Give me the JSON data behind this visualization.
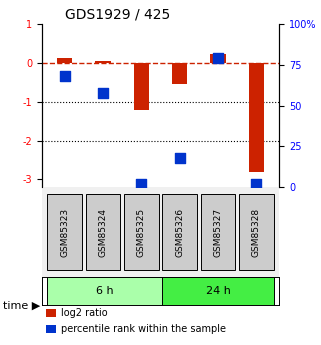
{
  "title": "GDS1929 / 425",
  "samples": [
    "GSM85323",
    "GSM85324",
    "GSM85325",
    "GSM85326",
    "GSM85327",
    "GSM85328"
  ],
  "log2_ratio": [
    0.12,
    0.05,
    -1.2,
    -0.55,
    0.22,
    -2.8
  ],
  "percentile_rank": [
    68,
    58,
    2,
    18,
    79,
    2
  ],
  "groups": [
    {
      "label": "6 h",
      "indices": [
        0,
        1,
        2
      ],
      "color": "#aaffaa"
    },
    {
      "label": "24 h",
      "indices": [
        3,
        4,
        5
      ],
      "color": "#44ee44"
    }
  ],
  "ylim_left": [
    -3.2,
    1.0
  ],
  "ylim_right": [
    0,
    100
  ],
  "yticks_left": [
    1,
    0,
    -1,
    -2,
    -3
  ],
  "yticks_right": [
    100,
    75,
    50,
    25,
    0
  ],
  "ytick_right_labels": [
    "100%",
    "75",
    "50",
    "25",
    "0"
  ],
  "bar_color": "#cc2200",
  "dot_color": "#0033cc",
  "hline_color": "#cc2200",
  "dotted_lines": [
    -1,
    -2
  ],
  "bar_width": 0.4,
  "dot_size": 60,
  "plot_bg_color": "#ffffff",
  "sample_box_color": "#cccccc",
  "legend_items": [
    "log2 ratio",
    "percentile rank within the sample"
  ]
}
